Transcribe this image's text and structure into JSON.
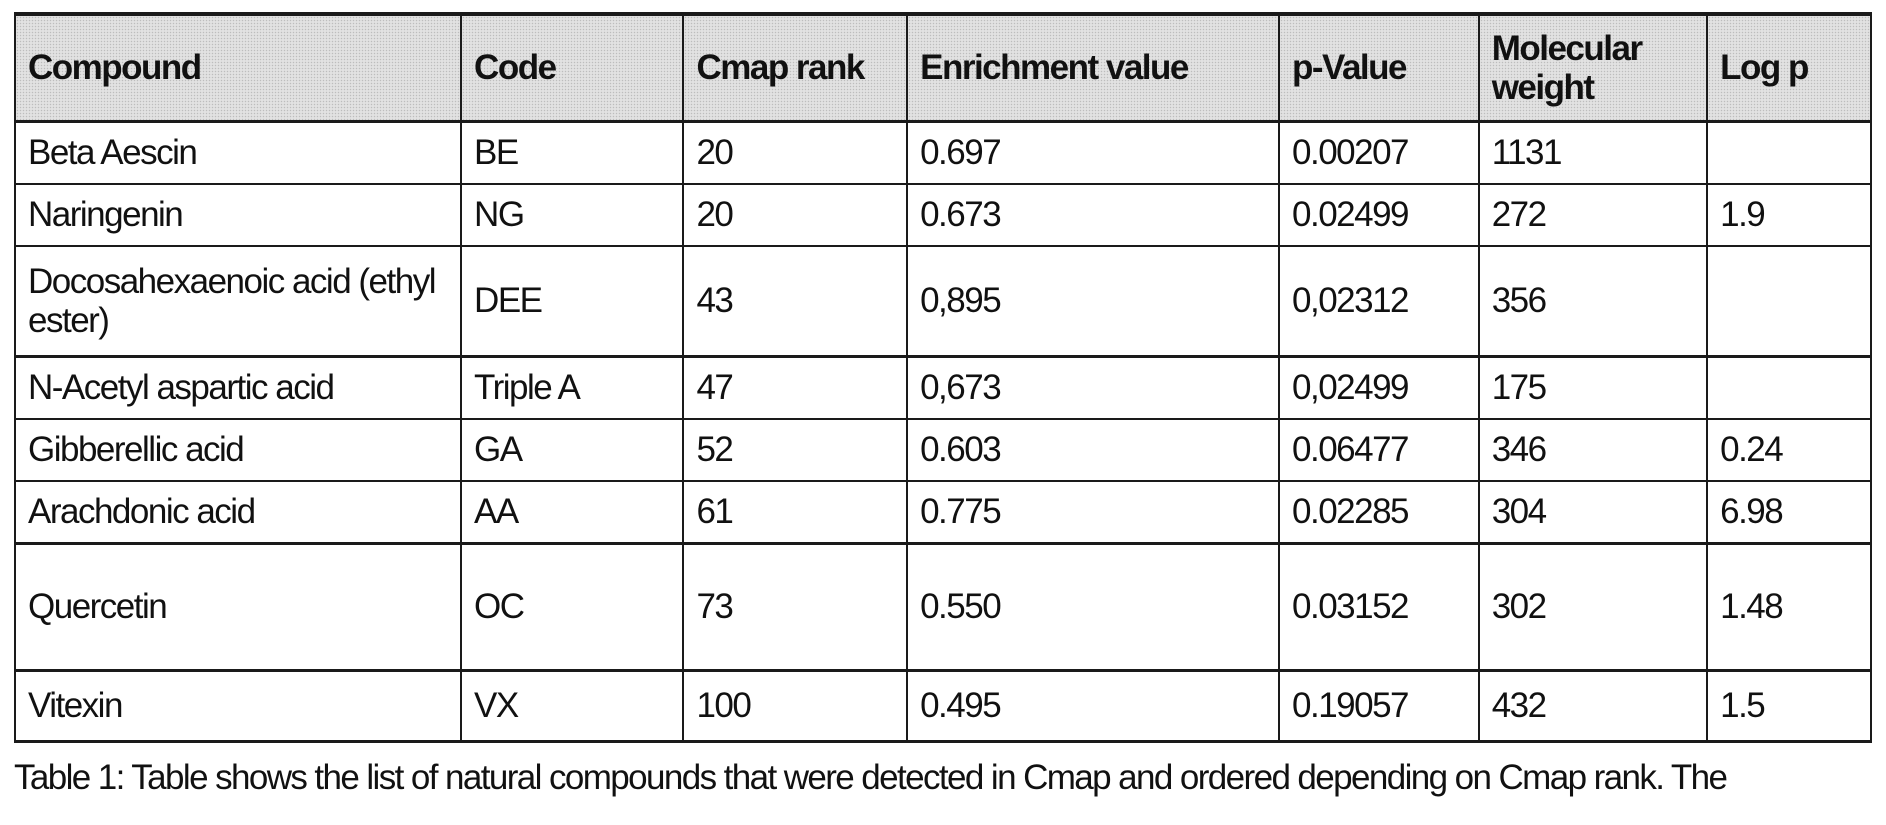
{
  "table": {
    "headers": [
      "Compound",
      "Code",
      "Cmap rank",
      "Enrichment value",
      "p-Value",
      "Molecular weight",
      "Log p"
    ],
    "rows": [
      [
        "Beta Aescin",
        "BE",
        "20",
        "0.697",
        "0.00207",
        "1131",
        ""
      ],
      [
        "Naringenin",
        "NG",
        "20",
        "0.673",
        "0.02499",
        "272",
        "1.9"
      ],
      [
        "Docosahexaenoic acid (ethyl ester)",
        "DEE",
        "43",
        "0,895",
        "0,02312",
        "356",
        ""
      ],
      [
        "N-Acetyl aspartic acid",
        "Triple A",
        "47",
        "0,673",
        "0,02499",
        "175",
        ""
      ],
      [
        "Gibberellic acid",
        "GA",
        "52",
        "0.603",
        "0.06477",
        "346",
        "0.24"
      ],
      [
        "Arachdonic acid",
        "AA",
        "61",
        "0.775",
        "0.02285",
        "304",
        "6.98"
      ],
      [
        "Quercetin",
        "OC",
        "73",
        "0.550",
        "0.03152",
        "302",
        "1.48"
      ],
      [
        "Vitexin",
        "VX",
        "100",
        "0.495",
        "0.19057",
        "432",
        "1.5"
      ]
    ]
  },
  "caption": "Table 1: Table shows the list of natural compounds that were detected in Cmap and ordered depending on Cmap rank. The"
}
